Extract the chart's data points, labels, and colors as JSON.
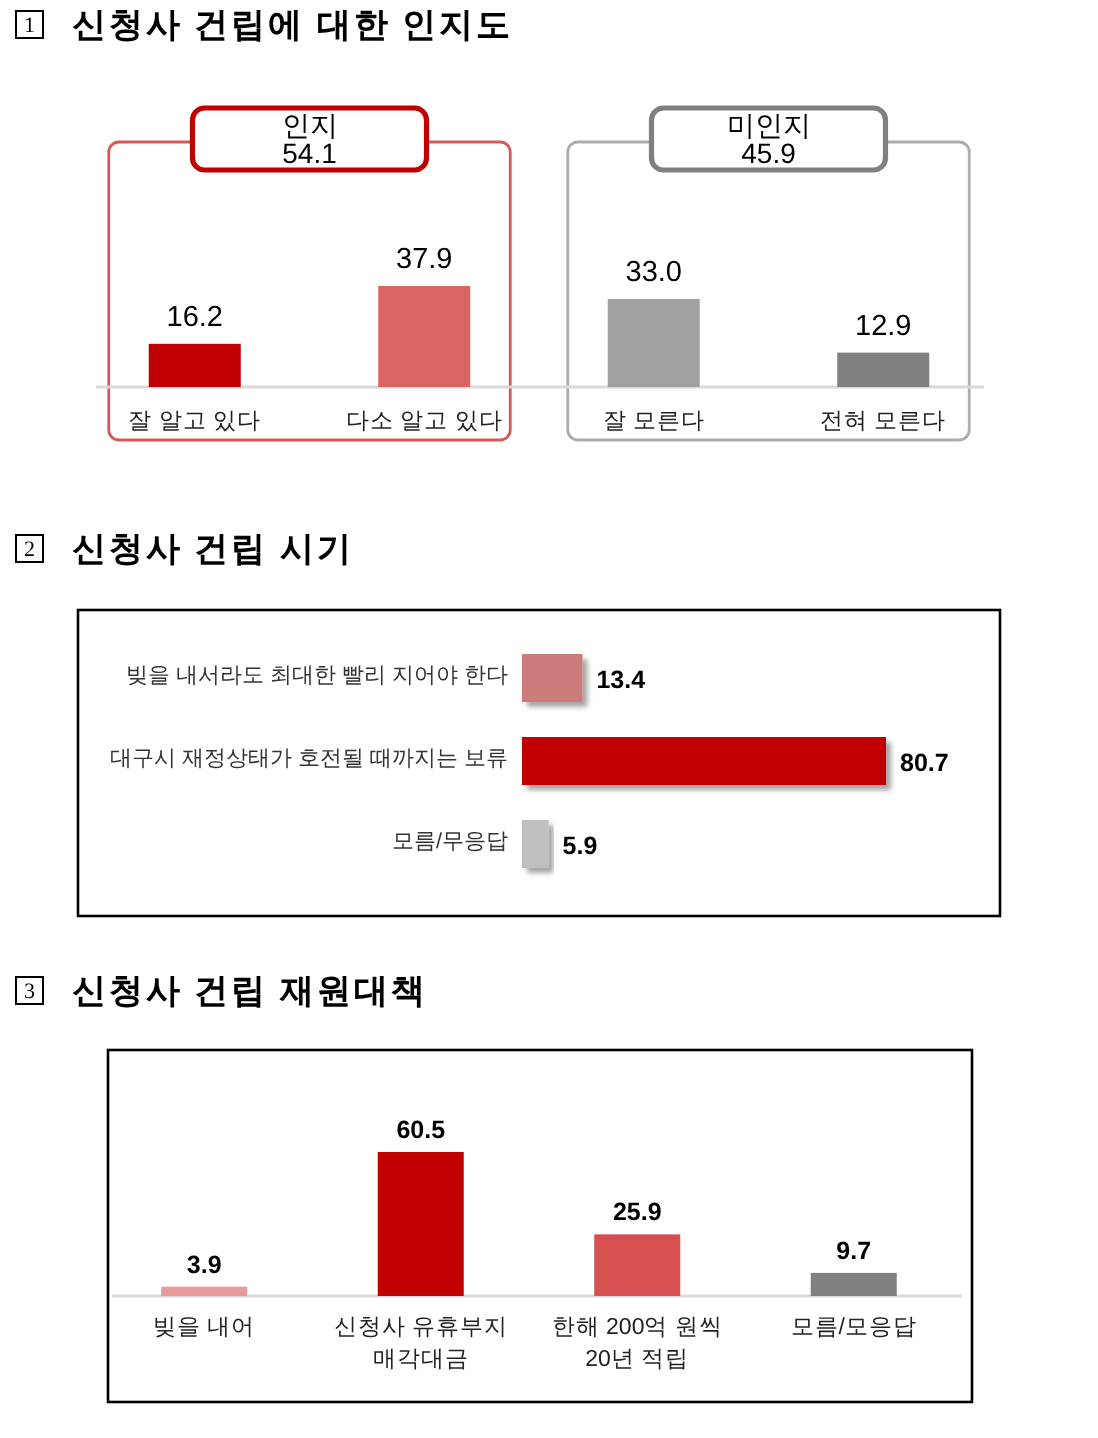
{
  "chart_data": [
    {
      "type": "bar",
      "title": "1 신청사 건립에 대한 인지도",
      "categories": [
        "잘 알고 있다",
        "다소 알고 있다",
        "잘 모른다",
        "전혀 모른다"
      ],
      "values": [
        16.2,
        37.9,
        33.0,
        12.9
      ],
      "colors": [
        "#c00000",
        "#d96464",
        "#a0a0a0",
        "#808080"
      ],
      "value_labels": [
        "16.2",
        "37.9",
        "33.0",
        "12.9"
      ],
      "annotations": [
        "인지\n54.1",
        "미인지\n45.9"
      ]
    },
    {
      "type": "bar",
      "orientation": "horizontal",
      "title": "2 신청사 건립 시기",
      "categories": [
        "빚을 내서라도 최대한 빨리 지어야 한다",
        "대구시 재정상태가 호전될 때까지는 보류",
        "모름/무응답"
      ],
      "values": [
        13.4,
        80.7,
        5.9
      ],
      "colors": [
        "#cd7b7b",
        "#c00000",
        "#bfbfbf"
      ],
      "data_labels": true
    },
    {
      "type": "bar",
      "title": "3 신청사 건립 재원대책",
      "categories": [
        "빚을 내어",
        "신청사 유휴부지\n매각대금",
        "한해 200억 원씩\n20년 적립",
        "모름/모응답"
      ],
      "values": [
        3.9,
        60.5,
        25.9,
        9.7
      ],
      "colors": [
        "#e89a9a",
        "#c00000",
        "#d65050",
        "#808080"
      ],
      "data_labels": true
    }
  ]
}
